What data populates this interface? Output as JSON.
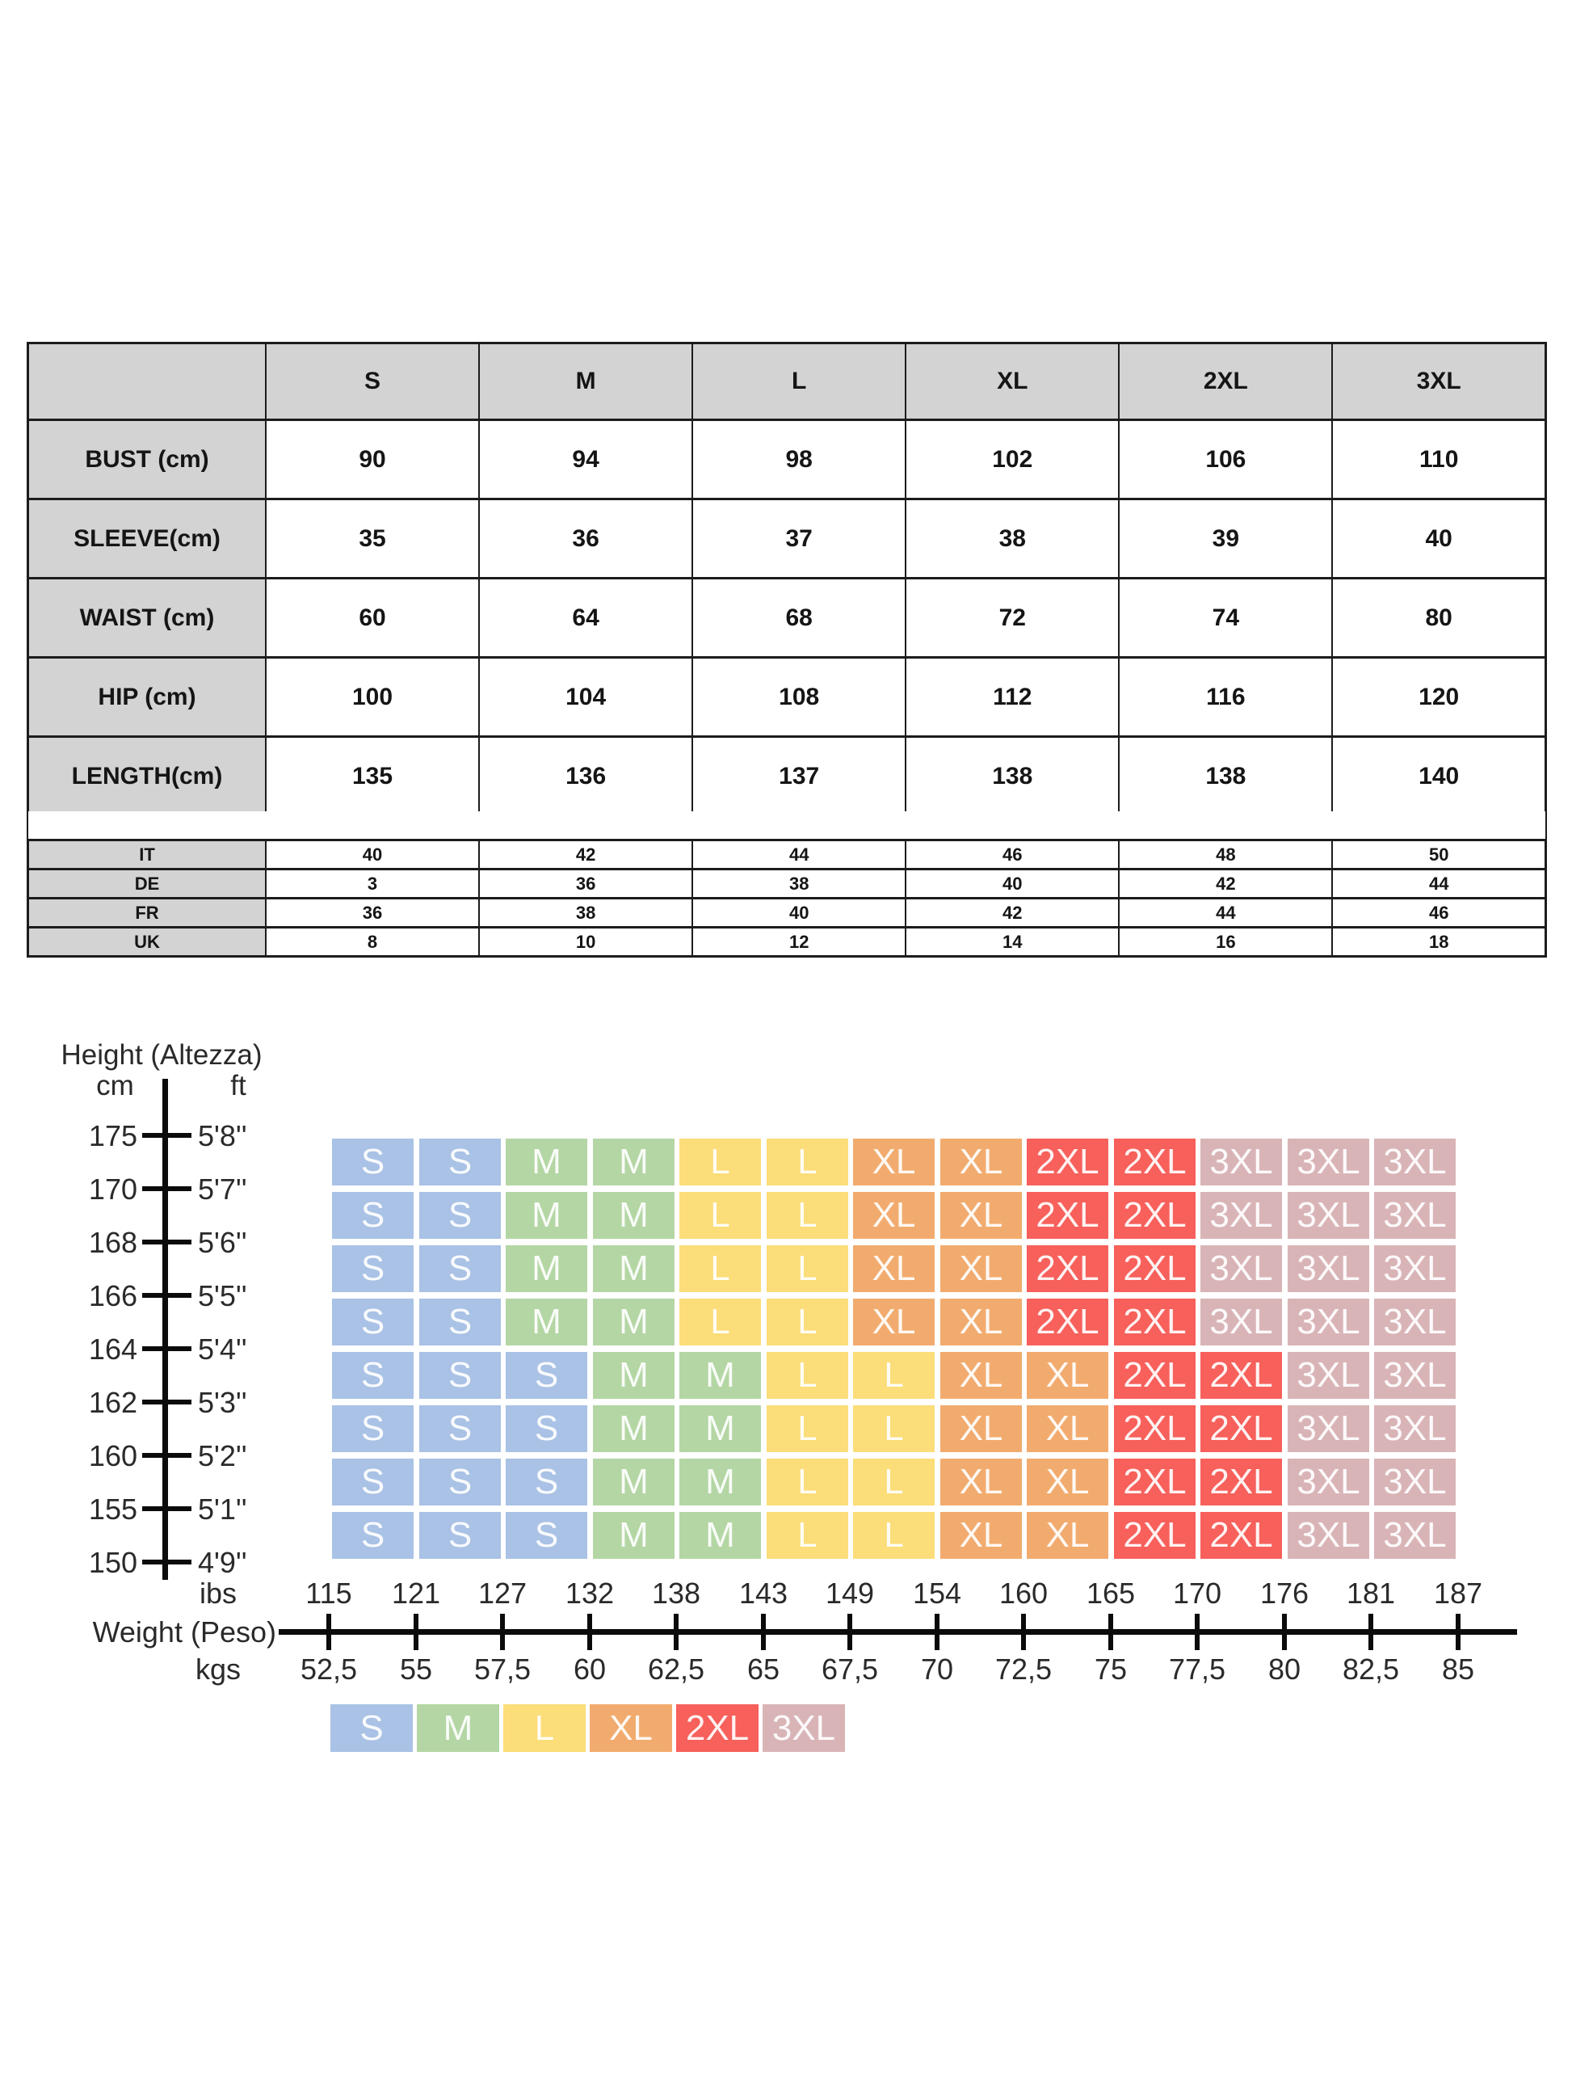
{
  "size_table": {
    "columns": [
      "S",
      "M",
      "L",
      "XL",
      "2XL",
      "3XL"
    ],
    "rows": [
      {
        "label": "BUST (cm)",
        "values": [
          "90",
          "94",
          "98",
          "102",
          "106",
          "110"
        ]
      },
      {
        "label": "SLEEVE(cm)",
        "values": [
          "35",
          "36",
          "37",
          "38",
          "39",
          "40"
        ]
      },
      {
        "label": "WAIST (cm)",
        "values": [
          "60",
          "64",
          "68",
          "72",
          "74",
          "80"
        ]
      },
      {
        "label": "HIP (cm)",
        "values": [
          "100",
          "104",
          "108",
          "112",
          "116",
          "120"
        ]
      },
      {
        "label": "LENGTH(cm)",
        "values": [
          "135",
          "136",
          "137",
          "138",
          "138",
          "140"
        ]
      }
    ]
  },
  "conversion_table": {
    "rows": [
      {
        "label": "IT",
        "values": [
          "40",
          "42",
          "44",
          "46",
          "48",
          "50"
        ]
      },
      {
        "label": "DE",
        "values": [
          "3",
          "36",
          "38",
          "40",
          "42",
          "44"
        ]
      },
      {
        "label": "FR",
        "values": [
          "36",
          "38",
          "40",
          "42",
          "44",
          "46"
        ]
      },
      {
        "label": "UK",
        "values": [
          "8",
          "10",
          "12",
          "14",
          "16",
          "18"
        ]
      }
    ]
  },
  "chart_data": {
    "type": "heatmap",
    "title": "Height (Altezza)",
    "y_axis": {
      "label": "Height (Altezza)",
      "cm_label": "cm",
      "ft_label": "ft",
      "cm_ticks": [
        "175",
        "170",
        "168",
        "166",
        "164",
        "162",
        "160",
        "155",
        "150"
      ],
      "ft_ticks": [
        "5'8''",
        "5'7''",
        "5'6''",
        "5'5''",
        "5'4''",
        "5'3''",
        "5'2''",
        "5'1''",
        "4'9''"
      ]
    },
    "x_axis": {
      "label": "Weight (Peso)",
      "lbs_label": "ibs",
      "kgs_label": "kgs",
      "lbs_ticks": [
        "115",
        "121",
        "127",
        "132",
        "138",
        "143",
        "149",
        "154",
        "160",
        "165",
        "170",
        "176",
        "181",
        "187"
      ],
      "kgs_ticks": [
        "52,5",
        "55",
        "57,5",
        "60",
        "62,5",
        "65",
        "67,5",
        "70",
        "72,5",
        "75",
        "77,5",
        "80",
        "82,5",
        "85"
      ]
    },
    "grid_rows": [
      [
        "S",
        "S",
        "M",
        "M",
        "L",
        "L",
        "XL",
        "XL",
        "2XL",
        "2XL",
        "3XL",
        "3XL",
        "3XL"
      ],
      [
        "S",
        "S",
        "M",
        "M",
        "L",
        "L",
        "XL",
        "XL",
        "2XL",
        "2XL",
        "3XL",
        "3XL",
        "3XL"
      ],
      [
        "S",
        "S",
        "M",
        "M",
        "L",
        "L",
        "XL",
        "XL",
        "2XL",
        "2XL",
        "3XL",
        "3XL",
        "3XL"
      ],
      [
        "S",
        "S",
        "M",
        "M",
        "L",
        "L",
        "XL",
        "XL",
        "2XL",
        "2XL",
        "3XL",
        "3XL",
        "3XL"
      ],
      [
        "S",
        "S",
        "S",
        "M",
        "M",
        "L",
        "L",
        "XL",
        "XL",
        "2XL",
        "2XL",
        "3XL",
        "3XL"
      ],
      [
        "S",
        "S",
        "S",
        "M",
        "M",
        "L",
        "L",
        "XL",
        "XL",
        "2XL",
        "2XL",
        "3XL",
        "3XL"
      ],
      [
        "S",
        "S",
        "S",
        "M",
        "M",
        "L",
        "L",
        "XL",
        "XL",
        "2XL",
        "2XL",
        "3XL",
        "3XL"
      ],
      [
        "S",
        "S",
        "S",
        "M",
        "M",
        "L",
        "L",
        "XL",
        "XL",
        "2XL",
        "2XL",
        "3XL",
        "3XL"
      ]
    ],
    "legend": [
      "S",
      "M",
      "L",
      "XL",
      "2XL",
      "3XL"
    ],
    "size_colors": {
      "S": "#a9c2e5",
      "M": "#b4d6a4",
      "L": "#fbdd79",
      "XL": "#f2ab6e",
      "2XL": "#f7605b",
      "3XL": "#d9b4b7"
    },
    "layout_hints": {
      "grid": "off",
      "legend_position": "bottom"
    }
  },
  "styles": {
    "header_bg": "#d3d3d3",
    "border_color": "#1c1c1c",
    "axis_color": "#0b0b0b",
    "cell_text": "#ffffff"
  }
}
